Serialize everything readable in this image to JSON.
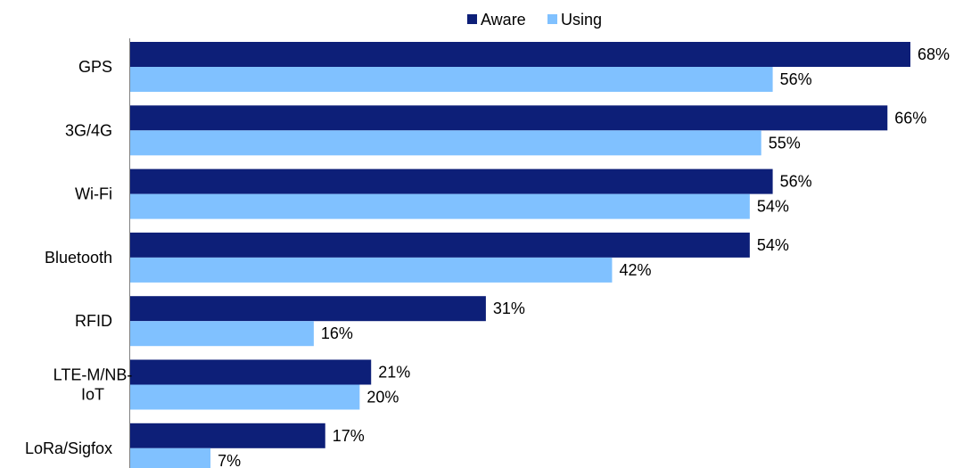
{
  "chart_data": {
    "type": "bar",
    "orientation": "horizontal",
    "title": "",
    "xlabel": "",
    "ylabel": "",
    "xlim": [
      0,
      68
    ],
    "grid": false,
    "legend_position": "top-center",
    "value_suffix": "%",
    "categories": [
      "GPS",
      "3G/4G",
      "Wi-Fi",
      "Bluetooth",
      "RFID",
      "LTE-M/NB-IoT",
      "LoRa/Sigfox"
    ],
    "category_label_lines": [
      [
        "GPS"
      ],
      [
        "3G/4G"
      ],
      [
        "Wi-Fi"
      ],
      [
        "Bluetooth"
      ],
      [
        "RFID"
      ],
      [
        "LTE-M/NB-",
        "IoT"
      ],
      [
        "LoRa/Sigfox"
      ]
    ],
    "series": [
      {
        "name": "Aware",
        "color": "#0d1f78",
        "values": [
          68,
          66,
          56,
          54,
          31,
          21,
          17
        ]
      },
      {
        "name": "Using",
        "color": "#80c1ff",
        "values": [
          56,
          55,
          54,
          42,
          16,
          20,
          7
        ]
      }
    ]
  }
}
